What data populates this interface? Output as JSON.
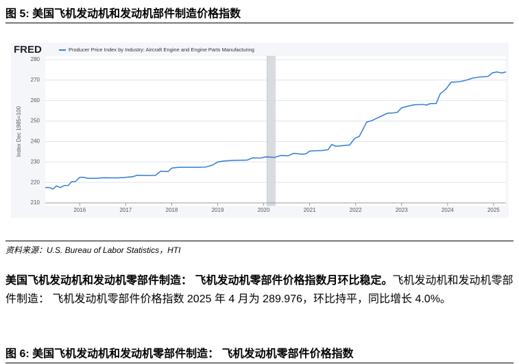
{
  "figure5": {
    "caption": "图 5: 美国飞机发动机和发动机部件制造价格指数"
  },
  "chart_data": {
    "type": "line",
    "brand": "FRED",
    "ylabel": "Index Dec 1985=100",
    "series": [
      {
        "name": "Producer Price Index by Industry: Aircraft Engine and Engine Parts Manufacturing",
        "color": "#3b82d6",
        "x": [
          2015.25,
          2015.34,
          2015.42,
          2015.49,
          2015.58,
          2015.66,
          2015.75,
          2015.82,
          2015.91,
          2016.0,
          2016.09,
          2016.18,
          2016.36,
          2016.51,
          2016.8,
          2017.0,
          2017.15,
          2017.25,
          2017.55,
          2017.65,
          2017.76,
          2017.92,
          2018.0,
          2018.15,
          2018.52,
          2018.74,
          2018.89,
          2019.0,
          2019.11,
          2019.34,
          2019.64,
          2019.76,
          2019.93,
          2020.05,
          2020.23,
          2020.38,
          2020.53,
          2020.65,
          2020.83,
          2020.92,
          2021.0,
          2021.13,
          2021.28,
          2021.4,
          2021.48,
          2021.57,
          2021.72,
          2021.87,
          2021.98,
          2022.08,
          2022.24,
          2022.35,
          2022.54,
          2022.69,
          2022.84,
          2022.91,
          2023.0,
          2023.18,
          2023.29,
          2023.48,
          2023.54,
          2023.62,
          2023.75,
          2023.84,
          2023.96,
          2024.08,
          2024.26,
          2024.41,
          2024.55,
          2024.7,
          2024.88,
          2024.97,
          2025.07,
          2025.18,
          2025.27
        ],
        "values": [
          217.5,
          217.5,
          216.8,
          218.3,
          217.5,
          218.5,
          218.5,
          220.3,
          220.5,
          222.5,
          222.5,
          222,
          222,
          222.3,
          222.2,
          222.5,
          222.8,
          223.5,
          223.4,
          223.5,
          225.5,
          225.3,
          227,
          227.4,
          227.4,
          227.5,
          228.5,
          230,
          230.4,
          230.8,
          230.9,
          232,
          231.9,
          232.5,
          232.2,
          233.2,
          233,
          234.2,
          233.8,
          234,
          235.3,
          235.5,
          235.6,
          236,
          238.5,
          237.7,
          238,
          238.3,
          241.5,
          242.5,
          249.5,
          250.2,
          252.2,
          253.8,
          254,
          254.3,
          256.5,
          257.5,
          258,
          258.1,
          257.8,
          258.5,
          258.5,
          263.3,
          265.5,
          269,
          269.2,
          270,
          271,
          271.5,
          271.8,
          273.5,
          274,
          273.5,
          274
        ]
      }
    ],
    "recession": [
      2020.07,
      2020.25
    ],
    "xlim": [
      2015.25,
      2025.27
    ],
    "xticks": [
      2016,
      2017,
      2018,
      2019,
      2020,
      2021,
      2022,
      2023,
      2024,
      2025
    ],
    "ylim": [
      210,
      280
    ],
    "yticks": [
      210,
      220,
      230,
      240,
      250,
      260,
      270,
      280
    ],
    "grid": true
  },
  "source": "资料来源：U.S. Bureau of Labor Statistics，HTI",
  "paragraph": {
    "lead": "美国飞机发动机和发动机零部件制造： 飞机发动机零部件价格指数月环比稳定。",
    "body": "飞机发动机和发动机零部件制造： 飞机发动机零部件价格指数 2025 年 4 月为 289.976，环比持平，同比增长 4.0%。"
  },
  "figure6": {
    "caption": "图 6: 美国飞机发动机和发动机零部件制造： 飞机发动机零部件价格指数"
  }
}
